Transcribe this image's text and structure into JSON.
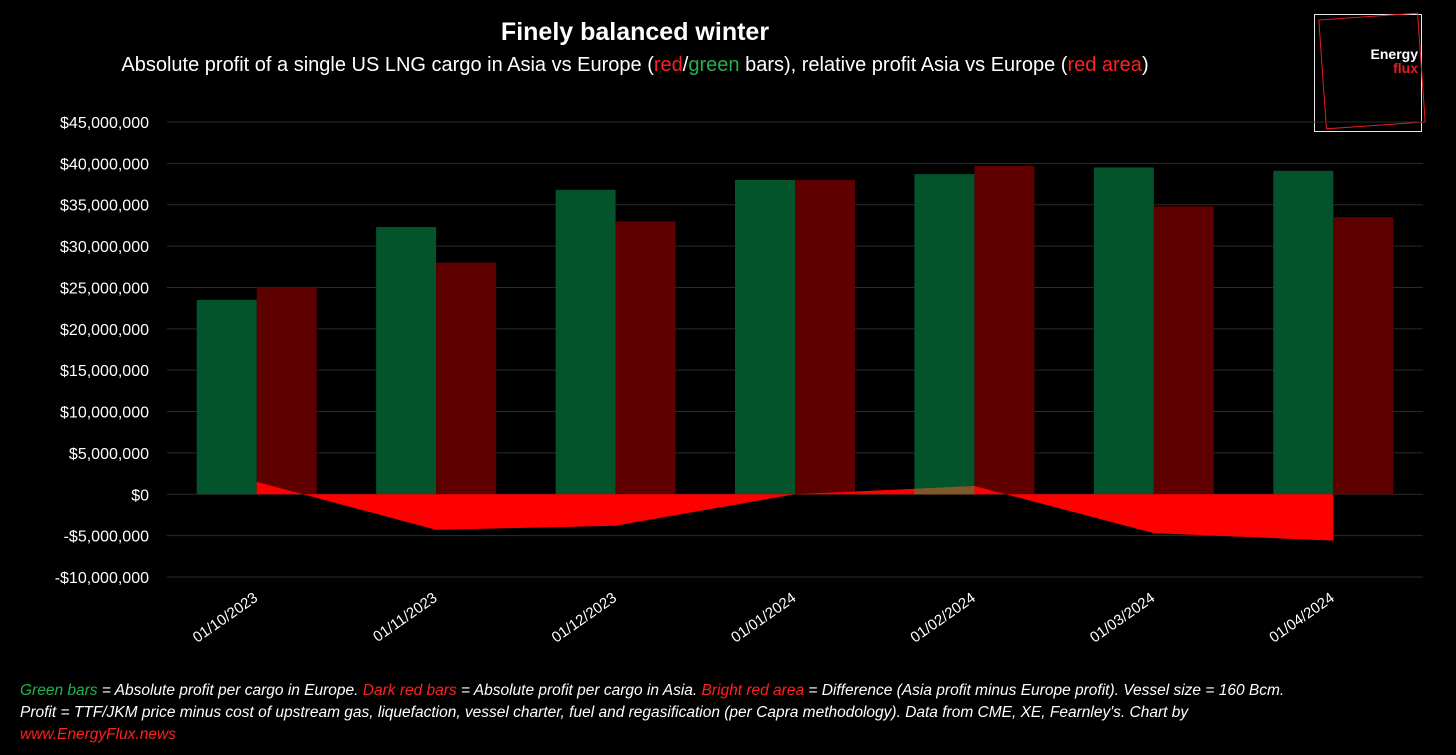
{
  "header": {
    "title": "Finely balanced winter",
    "subtitle_pre": "Absolute profit of a single US LNG cargo in Asia vs Europe (",
    "subtitle_red": "red",
    "subtitle_slash": "/",
    "subtitle_green": "green",
    "subtitle_mid": " bars), relative profit Asia vs Europe (",
    "subtitle_red_area": "red area",
    "subtitle_post": ")"
  },
  "logo": {
    "line1": "Energy",
    "line2": "flux"
  },
  "colors": {
    "europe_bar": "#03532b",
    "asia_bar": "#5e0000",
    "difference_area": "#ff0000",
    "overlap_area": "#7a5a2a",
    "gridline": "#2b2b2b",
    "text": "#ffffff"
  },
  "chart_data": {
    "type": "bar",
    "categories": [
      "01/10/2023",
      "01/11/2023",
      "01/12/2023",
      "01/01/2024",
      "01/02/2024",
      "01/03/2024",
      "01/04/2024"
    ],
    "series": [
      {
        "key": "europe",
        "type": "bar",
        "values": [
          23500000,
          32300000,
          36800000,
          38000000,
          38700000,
          39500000,
          39100000
        ]
      },
      {
        "key": "asia",
        "type": "bar",
        "values": [
          25000000,
          28000000,
          33000000,
          38000000,
          39700000,
          34800000,
          33500000
        ]
      },
      {
        "key": "difference",
        "type": "area",
        "values": [
          1500000,
          -4300000,
          -3800000,
          0,
          1000000,
          -4700000,
          -5600000
        ]
      }
    ],
    "y_ticks": [
      45000000,
      40000000,
      35000000,
      30000000,
      25000000,
      20000000,
      15000000,
      10000000,
      5000000,
      0,
      -5000000,
      -10000000
    ],
    "y_tick_labels": [
      "$45,000,000",
      "$40,000,000",
      "$35,000,000",
      "$30,000,000",
      "$25,000,000",
      "$20,000,000",
      "$15,000,000",
      "$10,000,000",
      "$5,000,000",
      "$0",
      "-$5,000,000",
      "-$10,000,000"
    ],
    "ylim": [
      -10000000,
      45000000
    ],
    "grid": true,
    "legend": "none"
  },
  "footer": {
    "l1_green": "Green bars",
    "l1_a": " = Absolute profit per cargo in Europe. ",
    "l1_dark_red": "Dark red bars",
    "l1_b": " = Absolute profit per cargo in Asia. ",
    "l1_bright_red": "Bright red area",
    "l1_c": " = Difference (Asia profit minus Europe profit). Vessel size = 160 Bcm.",
    "l2": "Profit = TTF/JKM price minus cost of upstream gas, liquefaction, vessel charter, fuel and regasification (per Capra methodology). Data from CME, XE, Fearnley's. Chart by",
    "l3_link": "www.EnergyFlux.news"
  }
}
